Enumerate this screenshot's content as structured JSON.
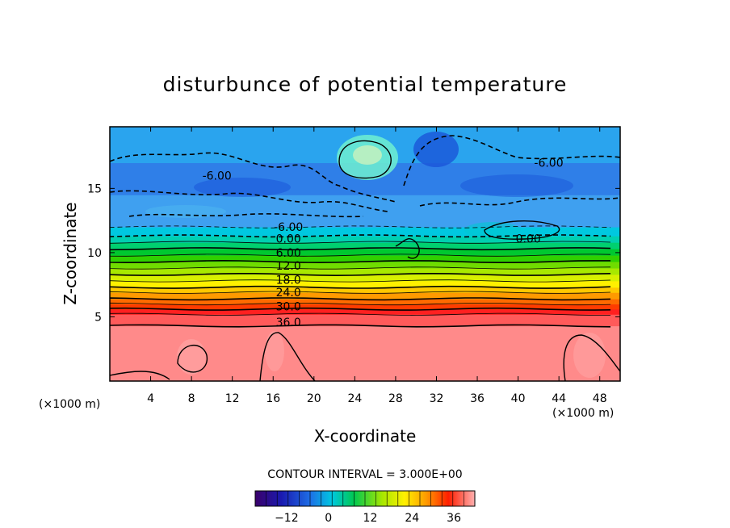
{
  "chart_data": {
    "type": "heatmap",
    "title": "disturbunce of potential temperature",
    "xlabel": "X-coordinate",
    "ylabel": "Z-coordinate",
    "x_unit_left": "(×1000 m)",
    "x_unit_right": "(×1000 m)",
    "xlim": [
      0,
      50
    ],
    "ylim": [
      0,
      19.8
    ],
    "x_ticks": [
      4,
      8,
      12,
      16,
      20,
      24,
      28,
      32,
      36,
      40,
      44,
      48
    ],
    "x_tick_labels": [
      "4",
      "8",
      "12",
      "16",
      "20",
      "24",
      "28",
      "32",
      "36",
      "40",
      "44",
      "48"
    ],
    "y_ticks": [
      5,
      10,
      15
    ],
    "y_tick_labels": [
      "5",
      "10",
      "15"
    ],
    "contour_interval_text": "CONTOUR INTERVAL = 3.000E+00",
    "colorbar": {
      "min": -21,
      "max": 42,
      "ticks": [
        -12,
        0,
        12,
        24,
        36
      ],
      "tick_labels": [
        "−12",
        "0",
        "12",
        "24",
        "36"
      ]
    },
    "bands": [
      {
        "z0": 0.0,
        "z1": 4.3,
        "value": 40,
        "color": "#ff8a8a"
      },
      {
        "z0": 4.3,
        "z1": 5.2,
        "value": 37,
        "color": "#ff5a5a"
      },
      {
        "z0": 5.2,
        "z1": 5.6,
        "value": 34,
        "color": "#ff2020"
      },
      {
        "z0": 5.6,
        "z1": 6.0,
        "value": 31,
        "color": "#ff3c00"
      },
      {
        "z0": 6.0,
        "z1": 6.4,
        "value": 28,
        "color": "#ff6a00"
      },
      {
        "z0": 6.4,
        "z1": 6.9,
        "value": 25,
        "color": "#ff9a00"
      },
      {
        "z0": 6.9,
        "z1": 7.3,
        "value": 22,
        "color": "#ffc800"
      },
      {
        "z0": 7.3,
        "z1": 7.8,
        "value": 19,
        "color": "#fff000"
      },
      {
        "z0": 7.8,
        "z1": 8.3,
        "value": 16,
        "color": "#d8f000"
      },
      {
        "z0": 8.3,
        "z1": 8.8,
        "value": 13,
        "color": "#a8e800"
      },
      {
        "z0": 8.8,
        "z1": 9.3,
        "value": 10,
        "color": "#70dc00"
      },
      {
        "z0": 9.3,
        "z1": 9.8,
        "value": 7,
        "color": "#30d000"
      },
      {
        "z0": 9.8,
        "z1": 10.3,
        "value": 4,
        "color": "#00c830"
      },
      {
        "z0": 10.3,
        "z1": 10.8,
        "value": 1,
        "color": "#00d070"
      },
      {
        "z0": 10.8,
        "z1": 11.3,
        "value": -2,
        "color": "#00d0b0"
      },
      {
        "z0": 11.3,
        "z1": 12.0,
        "value": -4,
        "color": "#00c8e0"
      },
      {
        "z0": 12.0,
        "z1": 14.5,
        "value": -7,
        "color": "#3fa0f0"
      },
      {
        "z0": 14.5,
        "z1": 17.0,
        "value": -9,
        "color": "#2f7fe8"
      },
      {
        "z0": 17.0,
        "z1": 19.8,
        "value": -6,
        "color": "#2aa4ee"
      }
    ],
    "contour_labels": [
      {
        "text": "-6.00",
        "x": 10.5,
        "y": 16.0
      },
      {
        "text": "-6.00",
        "x": 43.0,
        "y": 17.0
      },
      {
        "text": "-6.00",
        "x": 17.5,
        "y": 12.0
      },
      {
        "text": "0.00",
        "x": 17.5,
        "y": 11.1
      },
      {
        "text": "0.00",
        "x": 41.0,
        "y": 11.1
      },
      {
        "text": "6.00",
        "x": 17.5,
        "y": 10.0
      },
      {
        "text": "12.0",
        "x": 17.5,
        "y": 9.0
      },
      {
        "text": "18.0",
        "x": 17.5,
        "y": 7.9
      },
      {
        "text": "24.0",
        "x": 17.5,
        "y": 6.9
      },
      {
        "text": "30.0",
        "x": 17.5,
        "y": 5.8
      },
      {
        "text": "36.0",
        "x": 17.5,
        "y": 4.6
      }
    ]
  }
}
